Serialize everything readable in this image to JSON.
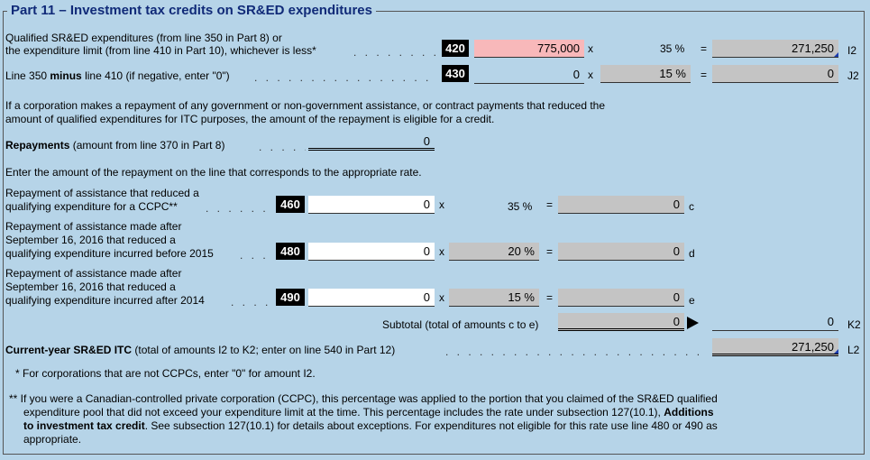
{
  "title": "Part 11 – Investment tax credits on SR&ED expenditures",
  "row420": {
    "label1": "Qualified SR&ED expenditures (from line 350 in Part 8) or",
    "label2": "the expenditure limit (from line 410 in Part 10), whichever is less*",
    "code": "420",
    "value": "775,000",
    "x": "x",
    "rate": "35 %",
    "eq": "=",
    "result": "271,250",
    "suffix": "I2"
  },
  "row430": {
    "label_pre": "Line 350 ",
    "label_bold": "minus",
    "label_post": " line 410 (if negative, enter \"0\")",
    "code": "430",
    "value": "0",
    "x": "x",
    "rate": "15 %",
    "eq": "=",
    "result": "0",
    "suffix": "J2"
  },
  "repay_note1": "If a corporation makes a repayment of any government or non-government assistance, or contract payments that reduced the",
  "repay_note2": "amount of qualified expenditures for ITC purposes, the amount of the repayment is eligible for a credit.",
  "repayments": {
    "bold": "Repayments",
    "rest": " (amount from line 370 in Part 8)",
    "value": "0"
  },
  "enter_note": "Enter the amount of the repayment on the line that corresponds to the appropriate rate.",
  "row460": {
    "label1": "Repayment of assistance that reduced a",
    "label2": "qualifying expenditure for a CCPC**",
    "code": "460",
    "value": "0",
    "x": "x",
    "rate": "35 %",
    "eq": "=",
    "result": "0",
    "suffix": "c"
  },
  "row480": {
    "label1": "Repayment of assistance made after",
    "label2": "September 16, 2016 that reduced a",
    "label3": "qualifying expenditure incurred before 2015",
    "code": "480",
    "value": "0",
    "x": "x",
    "rate": "20 %",
    "eq": "=",
    "result": "0",
    "suffix": "d"
  },
  "row490": {
    "label1": "Repayment of assistance made after",
    "label2": "September 16, 2016 that reduced a",
    "label3": "qualifying expenditure incurred after 2014",
    "code": "490",
    "value": "0",
    "x": "x",
    "rate": "15 %",
    "eq": "=",
    "result": "0",
    "suffix": "e"
  },
  "subtotal": {
    "label": "Subtotal (total of amounts c to e)",
    "value": "0",
    "result": "0",
    "suffix": "K2"
  },
  "current": {
    "bold": "Current-year SR&ED ITC",
    "rest": " (total of amounts I2 to K2; enter on line 540 in Part 12)",
    "value": "271,250",
    "suffix": "L2"
  },
  "footnote1": "* For corporations that are not CCPCs, enter \"0\" for amount I2.",
  "footnote2": {
    "line1": "** If you were a Canadian-controlled private corporation (CCPC), this percentage was applied to the portion that you claimed of the SR&ED qualified",
    "line2_pre": "expenditure pool that did not exceed your expenditure limit at the time. This percentage includes the rate under subsection 127(10.1), ",
    "line2_bold": "Additions",
    "line3_bold": "to investment tax credit",
    "line3_post": ". See subsection 127(10.1) for details about exceptions. For expenditures not eligible for this rate use line 480 or 490 as",
    "line4": "appropriate."
  }
}
